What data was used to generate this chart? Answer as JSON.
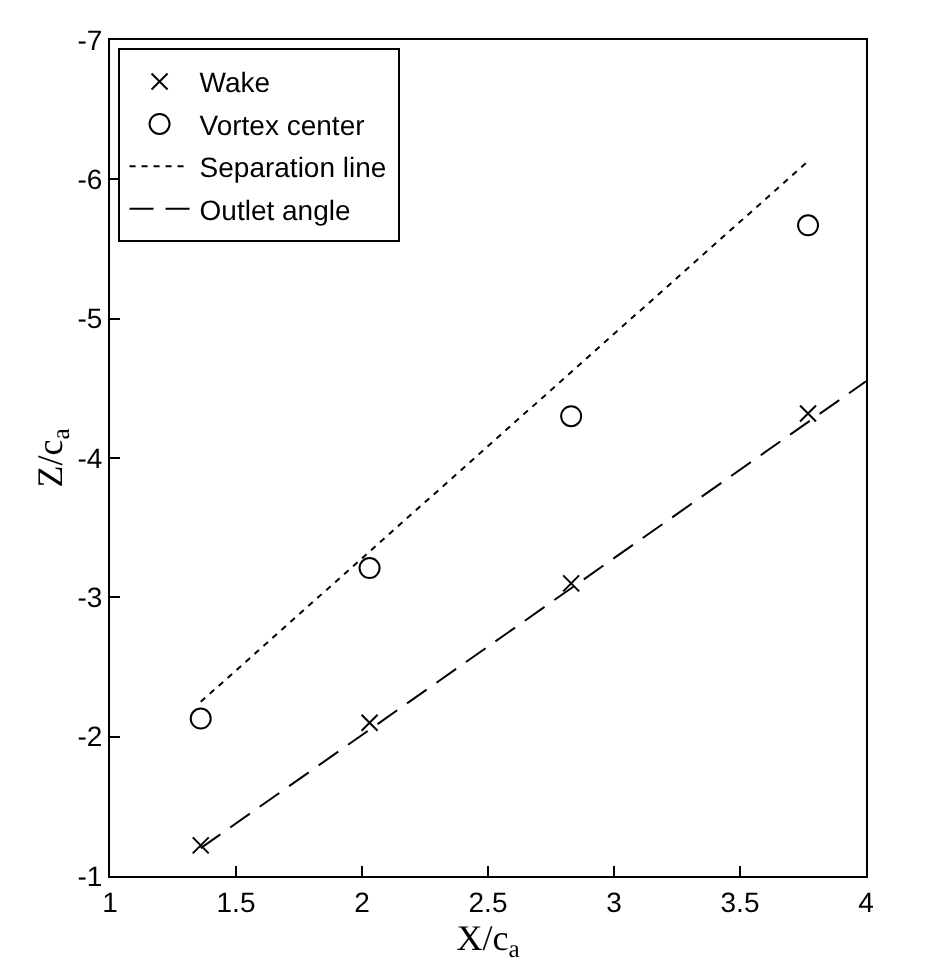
{
  "chart_data": {
    "type": "scatter",
    "xlabel": "X/c$_{a}$",
    "ylabel": "Z/c$_{a}$",
    "xlim": [
      1,
      4
    ],
    "xticks": [
      1,
      1.5,
      2,
      2.5,
      3,
      3.5,
      4
    ],
    "ylim": [
      -1,
      -7
    ],
    "yticks": [
      -1,
      -2,
      -3,
      -4,
      -5,
      -6,
      -7
    ],
    "legend": "top left",
    "series": [
      {
        "name": "Wake",
        "marker": "cross",
        "color": "#000000",
        "x": [
          1.36,
          2.03,
          2.83,
          3.77
        ],
        "values": [
          -1.22,
          -2.1,
          -3.1,
          -4.32
        ]
      },
      {
        "name": "Vortex center",
        "marker": "circle",
        "color": "#000000",
        "x": [
          1.36,
          2.03,
          2.83,
          3.77
        ],
        "values": [
          -2.13,
          -3.21,
          -4.3,
          -5.67
        ]
      },
      {
        "name": "Separation line",
        "type": "line",
        "line_style": "dotted",
        "color": "#000000",
        "x": [
          1.36,
          3.77
        ],
        "values": [
          -2.25,
          -6.13
        ]
      },
      {
        "name": "Outlet angle",
        "type": "line",
        "line_style": "dashed",
        "color": "#000000",
        "x": [
          1.36,
          4
        ],
        "values": [
          -1.2,
          -4.55
        ]
      }
    ]
  }
}
